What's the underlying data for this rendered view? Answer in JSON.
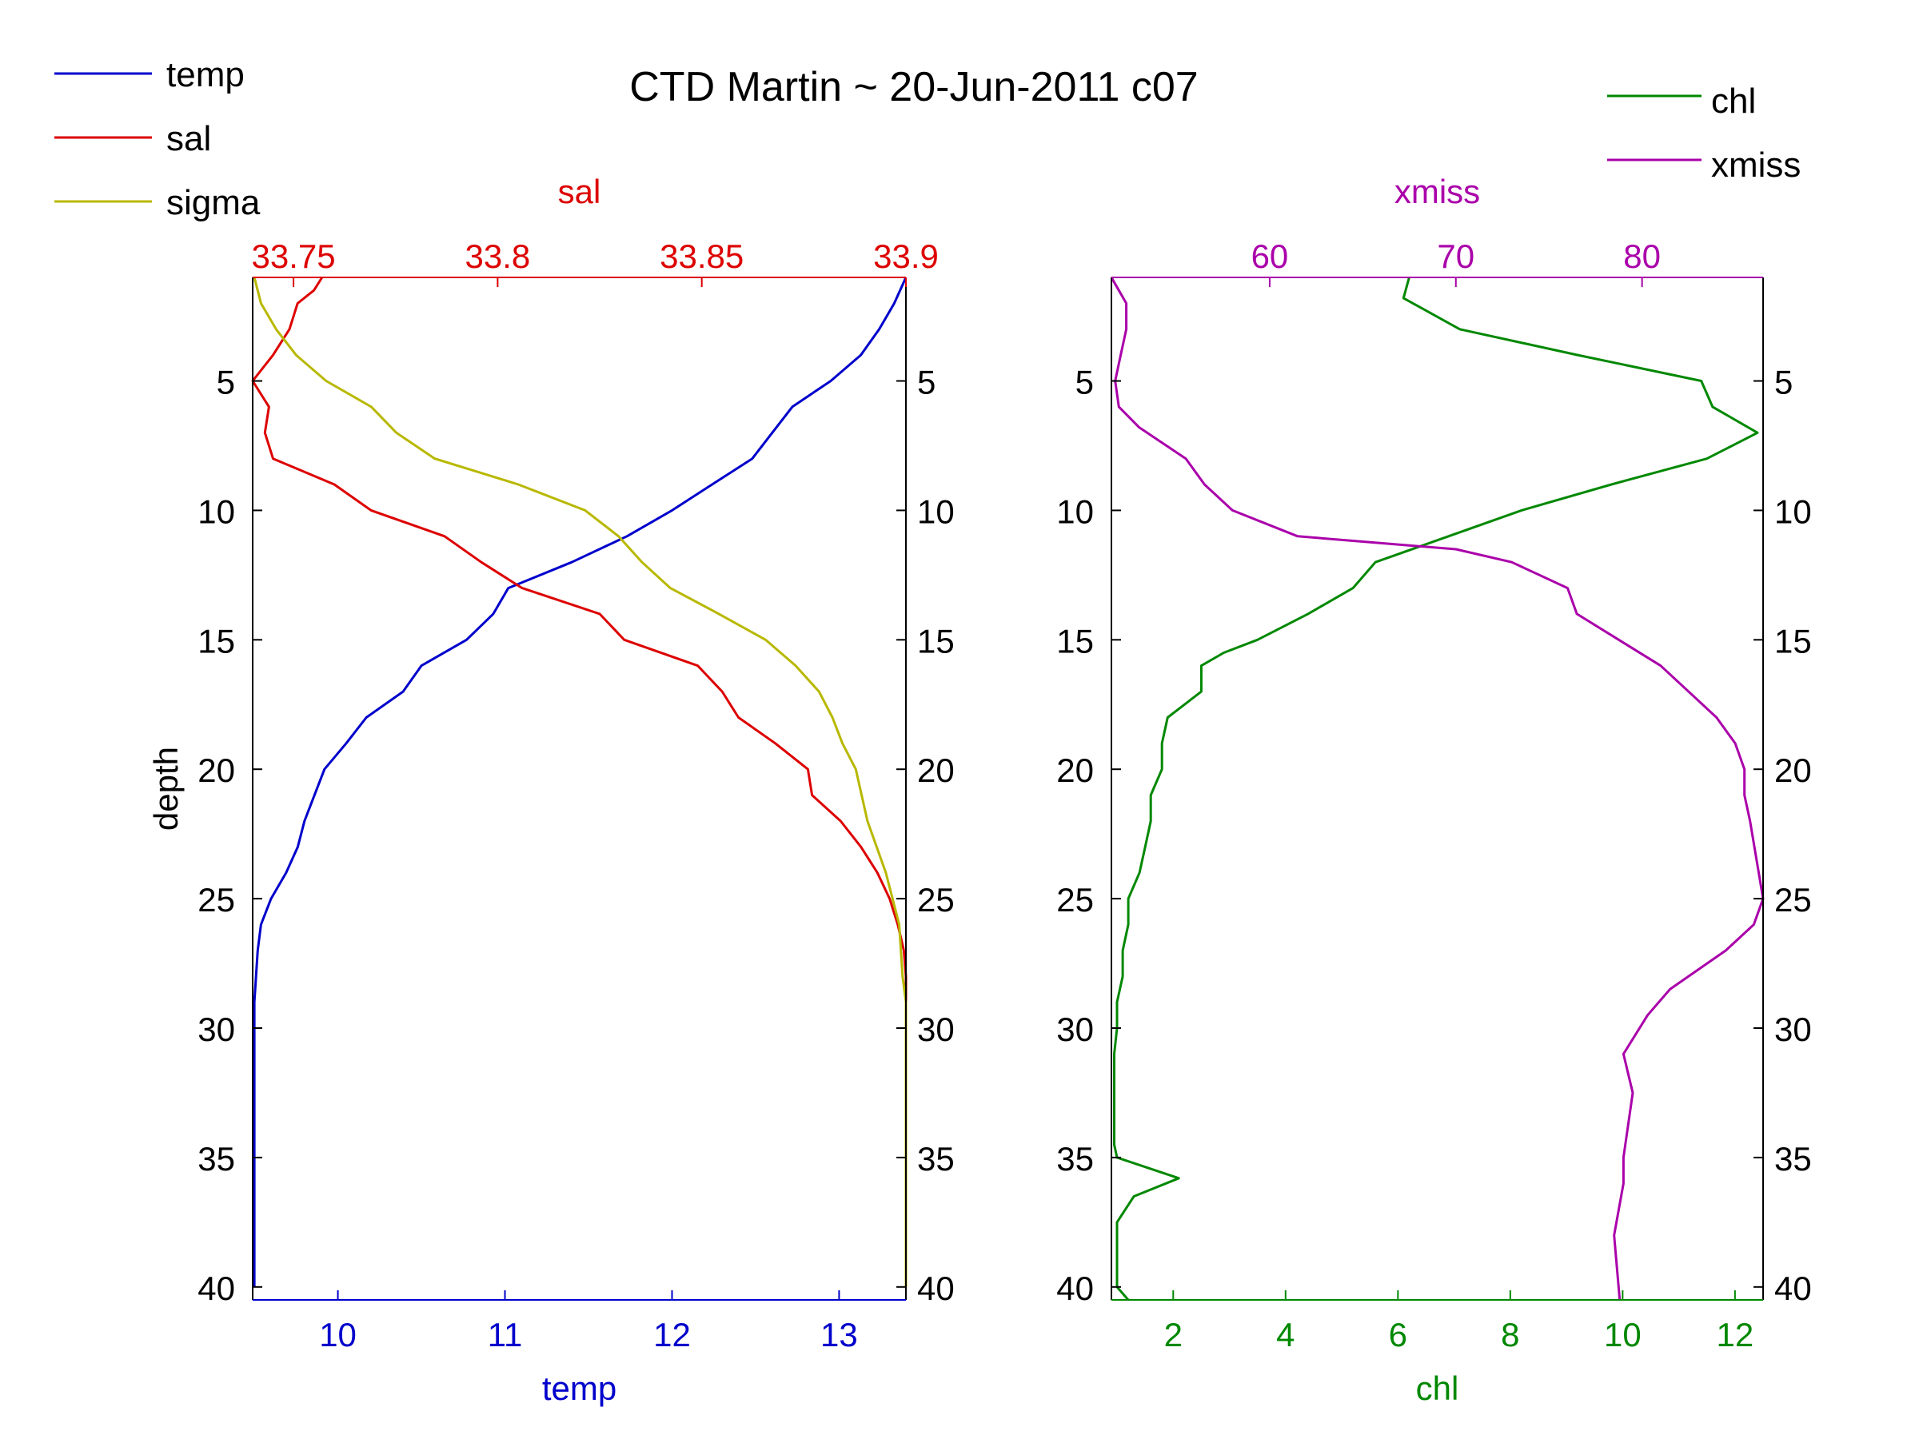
{
  "title": "CTD Martin ~ 20-Jun-2011 c07",
  "colors": {
    "temp": "#0000cc",
    "sal": "#dd0000",
    "sigma": "#b8b800",
    "chl": "#008800",
    "xmiss": "#aa00aa",
    "axis": "#000000"
  },
  "legend_left": {
    "placement": "top-left",
    "items": [
      {
        "key": "temp",
        "label": "temp"
      },
      {
        "key": "sal",
        "label": "sal"
      },
      {
        "key": "sigma",
        "label": "sigma"
      }
    ]
  },
  "legend_right": {
    "placement": "top-right",
    "items": [
      {
        "key": "chl",
        "label": "chl"
      },
      {
        "key": "xmiss",
        "label": "xmiss"
      }
    ]
  },
  "chart_data": [
    {
      "type": "line",
      "orientation": "profile",
      "ylabel": "depth",
      "ylim": [
        1,
        40.5
      ],
      "y_reversed": true,
      "yticks": [
        5,
        10,
        15,
        20,
        25,
        30,
        35,
        40
      ],
      "bottom_axis": {
        "label": "temp",
        "color_key": "temp",
        "lim": [
          9.49,
          13.4
        ],
        "ticks": [
          10,
          11,
          12,
          13
        ]
      },
      "top_axis": {
        "label": "sal",
        "color_key": "sal",
        "lim": [
          33.74,
          33.9
        ],
        "ticks": [
          33.75,
          33.8,
          33.85,
          33.9
        ],
        "tick_labels": [
          "33.75",
          "33.8",
          "33.85",
          "33.9"
        ]
      },
      "series": [
        {
          "name": "temp",
          "axis": "bottom",
          "color_key": "temp",
          "x": [
            13.4,
            13.33,
            13.24,
            13.13,
            12.95,
            12.72,
            12.6,
            12.48,
            12.24,
            12.0,
            11.73,
            11.4,
            11.02,
            10.93,
            10.77,
            10.5,
            10.39,
            10.17,
            10.05,
            9.92,
            9.86,
            9.8,
            9.76,
            9.69,
            9.6,
            9.54,
            9.52,
            9.51,
            9.5,
            9.5,
            9.5,
            9.5,
            9.5,
            9.5,
            9.5,
            9.5,
            9.5,
            9.5,
            9.5,
            9.5
          ],
          "y": [
            1,
            2,
            3,
            4,
            5,
            6,
            7,
            8,
            9,
            10,
            11,
            12,
            13,
            14,
            15,
            16,
            17,
            18,
            19,
            20,
            21,
            22,
            23,
            24,
            25,
            26,
            27,
            28,
            29,
            30,
            31,
            32,
            33,
            34,
            35,
            36,
            37,
            38,
            39,
            40
          ]
        },
        {
          "name": "sal",
          "axis": "top",
          "color_key": "sal",
          "x": [
            33.757,
            33.755,
            33.751,
            33.749,
            33.745,
            33.74,
            33.744,
            33.743,
            33.745,
            33.76,
            33.769,
            33.787,
            33.796,
            33.806,
            33.825,
            33.831,
            33.849,
            33.855,
            33.859,
            33.868,
            33.876,
            33.877,
            33.884,
            33.889,
            33.893,
            33.896,
            33.898,
            33.8995,
            33.9,
            33.9,
            33.9,
            33.9,
            33.9,
            33.9,
            33.9,
            33.9,
            33.9,
            33.9,
            33.9,
            33.9
          ],
          "y": [
            1,
            1.5,
            2,
            3,
            4,
            5,
            6,
            7,
            8,
            9,
            10,
            11,
            12,
            13,
            14,
            15,
            16,
            17,
            18,
            19,
            20,
            21,
            22,
            23,
            24,
            25,
            26,
            27,
            28,
            29,
            30,
            31,
            32,
            33,
            34,
            35,
            36,
            37,
            38,
            40
          ]
        },
        {
          "name": "sigma",
          "axis": "bottom",
          "color_key": "sigma",
          "x": [
            9.5,
            9.54,
            9.63,
            9.75,
            9.93,
            10.2,
            10.35,
            10.58,
            11.08,
            11.48,
            11.68,
            11.82,
            11.99,
            12.28,
            12.56,
            12.74,
            12.88,
            12.96,
            13.02,
            13.1,
            13.17,
            13.28,
            13.36,
            13.38,
            13.4,
            13.4,
            13.4,
            13.4,
            13.4,
            13.4,
            13.4,
            13.4,
            13.4,
            13.4
          ],
          "y": [
            1,
            2,
            3,
            4,
            5,
            6,
            7,
            8,
            9,
            10,
            11,
            12,
            13,
            14,
            15,
            16,
            17,
            18,
            19,
            20,
            22,
            24,
            26,
            28,
            29,
            30,
            31,
            32,
            33,
            34,
            35,
            36,
            37,
            40
          ]
        }
      ]
    },
    {
      "type": "line",
      "orientation": "profile",
      "ylabel": "",
      "ylim": [
        1,
        40.5
      ],
      "y_reversed": true,
      "yticks": [
        5,
        10,
        15,
        20,
        25,
        30,
        35,
        40
      ],
      "bottom_axis": {
        "label": "chl",
        "color_key": "chl",
        "lim": [
          0.9,
          12.5
        ],
        "ticks": [
          2,
          4,
          6,
          8,
          10,
          12
        ]
      },
      "top_axis": {
        "label": "xmiss",
        "color_key": "xmiss",
        "lim": [
          51.5,
          86.5
        ],
        "ticks": [
          60,
          70,
          80
        ],
        "tick_labels": [
          "60",
          "70",
          "80"
        ]
      },
      "series": [
        {
          "name": "chl",
          "axis": "bottom",
          "color_key": "chl",
          "x": [
            6.2,
            6.1,
            7.1,
            9.2,
            11.4,
            11.6,
            12.4,
            11.5,
            9.8,
            8.2,
            6.9,
            5.6,
            5.2,
            4.4,
            3.5,
            2.9,
            2.5,
            2.5,
            1.9,
            1.8,
            1.8,
            1.6,
            1.6,
            1.5,
            1.4,
            1.2,
            1.2,
            1.1,
            1.1,
            1.0,
            1.0,
            0.95,
            0.95,
            0.95,
            0.95,
            0.95,
            1.0,
            2.1,
            1.3,
            1.0,
            1.0,
            1.0,
            1.0,
            1.2
          ],
          "y": [
            1,
            1.8,
            3,
            4,
            5,
            6,
            7,
            8,
            9,
            10,
            11,
            12,
            13,
            14,
            15,
            15.5,
            16,
            17,
            18,
            19,
            20,
            21,
            22,
            23,
            24,
            25,
            26,
            27,
            28,
            29,
            30,
            31,
            32,
            33,
            34,
            34.5,
            35,
            35.8,
            36.5,
            37.5,
            38,
            39,
            40,
            40.5
          ]
        },
        {
          "name": "xmiss",
          "axis": "top",
          "color_key": "xmiss",
          "x": [
            51.5,
            52.3,
            52.3,
            52.0,
            51.7,
            51.9,
            53.0,
            55.5,
            56.5,
            58.0,
            61.5,
            70.0,
            73.0,
            76.0,
            76.5,
            81.0,
            84.0,
            85.0,
            85.5,
            85.5,
            85.8,
            86.5,
            86.0,
            84.5,
            81.5,
            80.3,
            79.0,
            79.5,
            79.0,
            79.0,
            78.5,
            78.8
          ],
          "y": [
            1,
            2,
            3,
            4,
            5,
            6,
            6.8,
            8,
            9,
            10,
            11,
            11.5,
            12,
            13,
            14,
            16,
            18,
            19,
            20,
            21,
            22,
            25,
            26,
            27,
            28.5,
            29.5,
            31,
            32.5,
            35,
            36,
            38,
            40.5
          ]
        }
      ]
    }
  ]
}
